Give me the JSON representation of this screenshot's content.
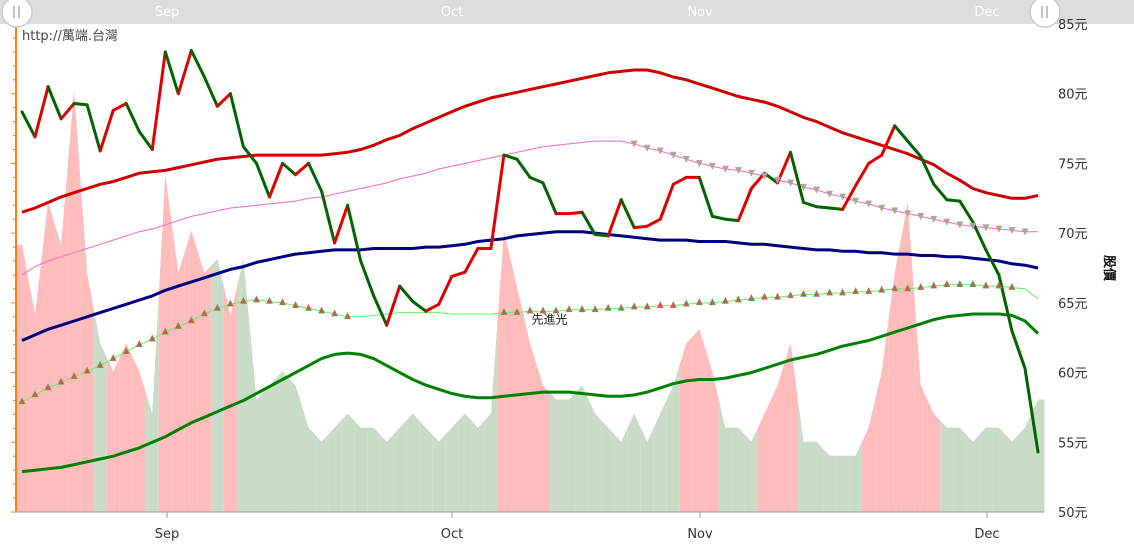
{
  "colors": {
    "price_up": "#e00000",
    "price_down": "#006400",
    "ma_long": "#cc0000",
    "ma_mid": "#000080",
    "ma_low": "#008000",
    "band_upper": "#ff66bb",
    "band_lower": "#66ee66",
    "vol_up": "#ffbcbc",
    "vol_down": "#c8dcc8",
    "axis": "#ff7f0e",
    "nav_bar": "#dddddd"
  },
  "header": {
    "source_text": "http://萬端.台灣"
  },
  "chart_data": {
    "type": "line",
    "ylabel": "股價",
    "ylim": [
      50,
      85
    ],
    "y_ticks": [
      {
        "value": 85,
        "label": "85元"
      },
      {
        "value": 80,
        "label": "80元"
      },
      {
        "value": 75,
        "label": "75元"
      },
      {
        "value": 70,
        "label": "70元"
      },
      {
        "value": 65,
        "label": "65元"
      },
      {
        "value": 60,
        "label": "60元"
      },
      {
        "value": 55,
        "label": "55元"
      },
      {
        "value": 50,
        "label": "50元"
      }
    ],
    "x_range": [
      0,
      85
    ],
    "x_ticks": [
      {
        "x": 12,
        "label": "Sep"
      },
      {
        "x": 36,
        "label": "Oct"
      },
      {
        "x": 57,
        "label": "Nov"
      },
      {
        "x": 81,
        "label": "Dec"
      }
    ],
    "annotations": [
      {
        "x": 40.5,
        "y": 63.8,
        "text": "先進光"
      }
    ],
    "price": [
      78.7,
      76.9,
      80.5,
      78.2,
      79.3,
      79.2,
      75.9,
      78.8,
      79.3,
      77.3,
      76.0,
      83.0,
      80.0,
      83.1,
      81.2,
      79.1,
      80.0,
      76.2,
      75.0,
      72.6,
      75.0,
      74.2,
      75.0,
      73.0,
      69.3,
      72.0,
      68.0,
      65.5,
      63.4,
      66.2,
      65.1,
      64.4,
      64.9,
      66.9,
      67.2,
      68.9,
      68.9,
      75.6,
      75.3,
      74.0,
      73.6,
      71.4,
      71.4,
      71.5,
      69.9,
      69.8,
      72.4,
      70.4,
      70.5,
      71.0,
      73.5,
      74.0,
      74.0,
      71.2,
      71.0,
      70.9,
      73.2,
      74.3,
      73.6,
      75.8,
      72.2,
      71.9,
      71.8,
      71.7,
      73.4,
      75.0,
      75.6,
      77.7,
      76.6,
      75.5,
      73.5,
      72.4,
      72.3,
      70.8,
      68.8,
      67.0,
      63.0,
      60.3,
      54.3
    ],
    "series": [
      {
        "name": "MA-long",
        "values": [
          71.5,
          71.8,
          72.2,
          72.6,
          72.9,
          73.2,
          73.5,
          73.7,
          74.0,
          74.3,
          74.4,
          74.5,
          74.7,
          74.9,
          75.1,
          75.3,
          75.4,
          75.5,
          75.6,
          75.6,
          75.6,
          75.6,
          75.6,
          75.6,
          75.7,
          75.8,
          76.0,
          76.3,
          76.7,
          77.0,
          77.5,
          77.9,
          78.3,
          78.7,
          79.1,
          79.4,
          79.7,
          79.9,
          80.1,
          80.3,
          80.5,
          80.7,
          80.9,
          81.1,
          81.3,
          81.5,
          81.6,
          81.7,
          81.7,
          81.5,
          81.2,
          81.0,
          80.7,
          80.4,
          80.1,
          79.8,
          79.6,
          79.4,
          79.1,
          78.7,
          78.3,
          78.0,
          77.6,
          77.2,
          76.9,
          76.6,
          76.3,
          76.0,
          75.7,
          75.3,
          74.9,
          74.3,
          73.8,
          73.2,
          72.9,
          72.7,
          72.5,
          72.5,
          72.7
        ]
      },
      {
        "name": "band-upper",
        "values": [
          67.0,
          67.6,
          68.0,
          68.3,
          68.6,
          68.9,
          69.2,
          69.5,
          69.8,
          70.1,
          70.3,
          70.6,
          70.9,
          71.2,
          71.4,
          71.6,
          71.8,
          71.9,
          72.0,
          72.1,
          72.2,
          72.3,
          72.5,
          72.6,
          72.8,
          73.0,
          73.2,
          73.4,
          73.6,
          73.9,
          74.1,
          74.3,
          74.6,
          74.8,
          75.0,
          75.2,
          75.4,
          75.6,
          75.8,
          76.0,
          76.2,
          76.3,
          76.4,
          76.5,
          76.6,
          76.6,
          76.6,
          76.4,
          76.1,
          75.9,
          75.6,
          75.3,
          75.0,
          74.8,
          74.6,
          74.5,
          74.3,
          74.1,
          73.8,
          73.6,
          73.3,
          73.1,
          72.8,
          72.6,
          72.3,
          72.1,
          71.8,
          71.6,
          71.4,
          71.2,
          71.0,
          70.8,
          70.6,
          70.5,
          70.4,
          70.3,
          70.2,
          70.1,
          70.1
        ]
      },
      {
        "name": "MA-mid",
        "values": [
          62.3,
          62.7,
          63.1,
          63.4,
          63.7,
          64.0,
          64.3,
          64.6,
          64.9,
          65.2,
          65.5,
          65.9,
          66.2,
          66.5,
          66.8,
          67.1,
          67.4,
          67.6,
          67.9,
          68.1,
          68.3,
          68.5,
          68.6,
          68.7,
          68.8,
          68.8,
          68.8,
          68.9,
          68.9,
          68.9,
          68.9,
          69.0,
          69.0,
          69.1,
          69.2,
          69.4,
          69.5,
          69.6,
          69.8,
          69.9,
          70.0,
          70.1,
          70.1,
          70.1,
          70.0,
          69.9,
          69.8,
          69.7,
          69.6,
          69.5,
          69.5,
          69.5,
          69.4,
          69.4,
          69.4,
          69.3,
          69.2,
          69.2,
          69.1,
          69.0,
          68.9,
          68.8,
          68.8,
          68.7,
          68.7,
          68.6,
          68.6,
          68.5,
          68.5,
          68.4,
          68.4,
          68.3,
          68.3,
          68.2,
          68.1,
          68.0,
          67.8,
          67.7,
          67.5
        ]
      },
      {
        "name": "band-lower",
        "values": [
          57.9,
          58.4,
          58.9,
          59.3,
          59.7,
          60.1,
          60.5,
          61.0,
          61.5,
          62.0,
          62.4,
          62.9,
          63.3,
          63.7,
          64.2,
          64.6,
          64.9,
          65.1,
          65.2,
          65.1,
          65.0,
          64.8,
          64.6,
          64.4,
          64.2,
          64.0,
          64.0,
          64.1,
          64.2,
          64.3,
          64.3,
          64.3,
          64.3,
          64.2,
          64.2,
          64.2,
          64.2,
          64.3,
          64.3,
          64.4,
          64.4,
          64.4,
          64.5,
          64.5,
          64.5,
          64.6,
          64.6,
          64.7,
          64.7,
          64.8,
          64.8,
          64.9,
          65.0,
          65.0,
          65.1,
          65.2,
          65.3,
          65.4,
          65.4,
          65.5,
          65.6,
          65.6,
          65.7,
          65.7,
          65.8,
          65.8,
          65.9,
          66.0,
          66.0,
          66.1,
          66.2,
          66.3,
          66.3,
          66.3,
          66.2,
          66.2,
          66.1,
          66.0,
          65.3
        ]
      },
      {
        "name": "MA-low",
        "values": [
          52.9,
          53.0,
          53.1,
          53.2,
          53.4,
          53.6,
          53.8,
          54.0,
          54.3,
          54.6,
          55.0,
          55.4,
          55.9,
          56.4,
          56.8,
          57.2,
          57.6,
          58.0,
          58.5,
          59.0,
          59.5,
          60.0,
          60.5,
          61.0,
          61.3,
          61.4,
          61.3,
          61.0,
          60.5,
          60.0,
          59.5,
          59.1,
          58.8,
          58.5,
          58.3,
          58.2,
          58.2,
          58.3,
          58.4,
          58.5,
          58.6,
          58.6,
          58.6,
          58.5,
          58.4,
          58.3,
          58.3,
          58.4,
          58.6,
          58.9,
          59.2,
          59.4,
          59.5,
          59.5,
          59.6,
          59.8,
          60.0,
          60.3,
          60.6,
          60.9,
          61.1,
          61.3,
          61.6,
          61.9,
          62.1,
          62.3,
          62.6,
          62.9,
          63.2,
          63.5,
          63.8,
          64.0,
          64.1,
          64.2,
          64.2,
          64.2,
          64.1,
          63.7,
          62.8
        ]
      }
    ],
    "volume_hint": [
      19,
      14,
      22,
      19,
      30,
      17,
      12,
      10,
      12,
      10,
      7,
      24,
      17,
      20,
      17,
      18,
      14,
      18,
      8,
      9,
      10,
      9,
      6,
      5,
      6,
      7,
      6,
      6,
      5,
      6,
      7,
      6,
      5,
      6,
      7,
      6,
      7,
      20,
      16,
      12,
      9,
      8,
      8,
      9,
      7,
      6,
      5,
      7,
      5,
      7,
      9,
      12,
      13,
      10,
      6,
      6,
      5,
      7,
      9,
      12,
      5,
      5,
      4,
      4,
      4,
      6,
      10,
      17,
      22,
      9,
      7,
      6,
      6,
      5,
      6,
      6,
      5,
      6,
      8
    ],
    "volume_direction": [
      1,
      1,
      1,
      1,
      1,
      1,
      0,
      1,
      1,
      1,
      0,
      1,
      1,
      1,
      1,
      0,
      1,
      0,
      0,
      0,
      0,
      0,
      0,
      0,
      0,
      0,
      0,
      0,
      0,
      0,
      0,
      0,
      0,
      0,
      0,
      0,
      0,
      1,
      1,
      1,
      1,
      0,
      0,
      0,
      0,
      0,
      0,
      0,
      0,
      0,
      0,
      1,
      1,
      1,
      0,
      0,
      0,
      1,
      1,
      1,
      0,
      0,
      0,
      0,
      0,
      1,
      1,
      1,
      1,
      1,
      1,
      0,
      0,
      0,
      0,
      0,
      0,
      0,
      0
    ]
  }
}
